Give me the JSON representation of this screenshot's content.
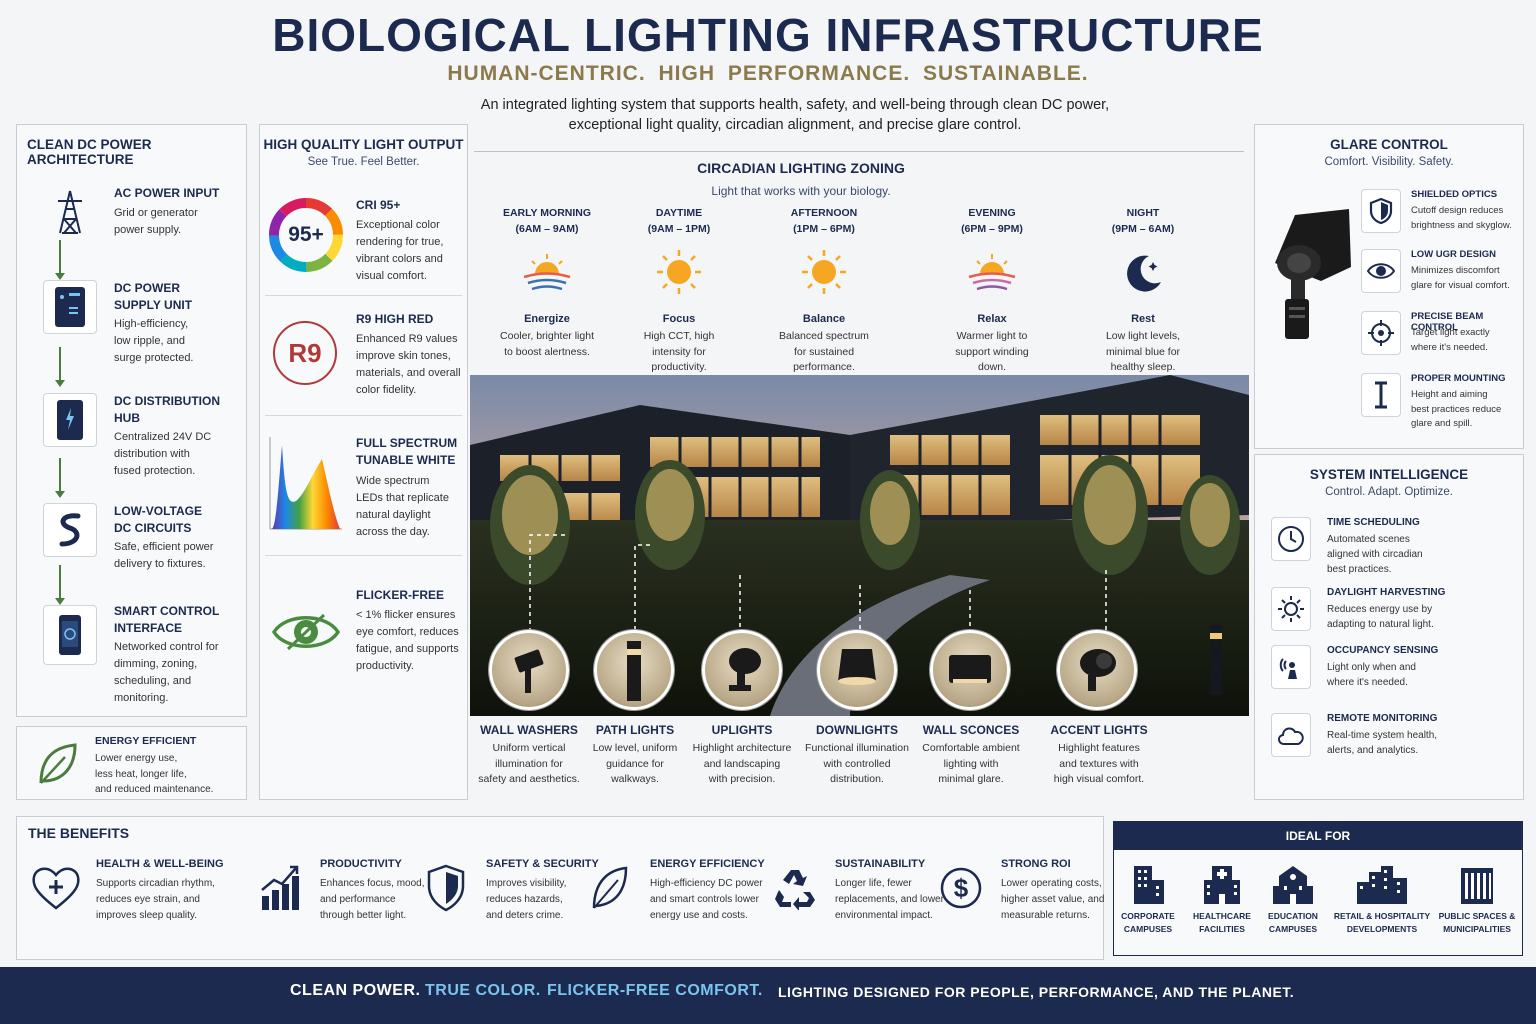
{
  "header": {
    "title": "BIOLOGICAL LIGHTING INFRASTRUCTURE",
    "subtitle": "HUMAN-CENTRIC.  HIGH PERFORMANCE.  SUSTAINABLE.",
    "intro_line1": "An integrated lighting system that supports health, safety, and well-being through clean DC power,",
    "intro_line2": "exceptional light quality, circadian alignment, and precise glare control."
  },
  "dc_power": {
    "title": "CLEAN DC POWER ARCHITECTURE",
    "steps": [
      {
        "h1": "AC POWER INPUT",
        "h2": "",
        "desc": [
          "Grid or generator",
          "power supply."
        ],
        "icon": "power-tower-icon"
      },
      {
        "h1": "DC POWER",
        "h2": "SUPPLY UNIT",
        "desc": [
          "High-efficiency,",
          "low ripple, and",
          "surge protected."
        ],
        "icon": "power-supply-icon"
      },
      {
        "h1": "DC DISTRIBUTION",
        "h2": "HUB",
        "desc": [
          "Centralized 24V DC",
          "distribution with",
          "fused protection."
        ],
        "icon": "distribution-hub-icon"
      },
      {
        "h1": "LOW-VOLTAGE",
        "h2": "DC CIRCUITS",
        "desc": [
          "Safe, efficient power",
          "delivery to fixtures."
        ],
        "icon": "circuit-cable-icon"
      },
      {
        "h1": "SMART CONTROL",
        "h2": "INTERFACE",
        "desc": [
          "Networked control for",
          "dimming, zoning,",
          "scheduling, and",
          "monitoring."
        ],
        "icon": "smart-control-icon"
      }
    ],
    "energy": {
      "title": "ENERGY EFFICIENT",
      "desc": [
        "Lower energy use,",
        "less heat, longer life,",
        "and reduced maintenance."
      ]
    }
  },
  "light_quality": {
    "title": "HIGH QUALITY LIGHT OUTPUT",
    "subtitle": "See True. Feel Better.",
    "cri_badge": "95+",
    "r9_badge": "R9",
    "items": [
      {
        "h": [
          "CRI 95+"
        ],
        "desc": [
          "Exceptional color",
          "rendering for true,",
          "vibrant colors and",
          "visual comfort."
        ]
      },
      {
        "h": [
          "R9 HIGH RED"
        ],
        "desc": [
          "Enhanced R9 values",
          "improve skin tones,",
          "materials, and overall",
          "color fidelity."
        ]
      },
      {
        "h": [
          "FULL SPECTRUM",
          "TUNABLE WHITE"
        ],
        "desc": [
          "Wide spectrum",
          "LEDs that replicate",
          "natural daylight",
          "across the day."
        ]
      },
      {
        "h": [
          "FLICKER-FREE"
        ],
        "desc": [
          "< 1% flicker ensures",
          "eye comfort, reduces",
          "fatigue, and supports",
          "productivity."
        ]
      }
    ]
  },
  "circadian": {
    "title": "CIRCADIAN LIGHTING ZONING",
    "subtitle": "Light that works with your biology.",
    "zones": [
      {
        "name": "EARLY MORNING",
        "time": "(6AM – 9AM)",
        "mood": "Energize",
        "desc": [
          "Cooler, brighter light",
          "to boost alertness."
        ],
        "icon": "sunrise-icon"
      },
      {
        "name": "DAYTIME",
        "time": "(9AM – 1PM)",
        "mood": "Focus",
        "desc": [
          "High CCT, high",
          "intensity for",
          "productivity."
        ],
        "icon": "sun-icon"
      },
      {
        "name": "AFTERNOON",
        "time": "(1PM – 6PM)",
        "mood": "Balance",
        "desc": [
          "Balanced spectrum",
          "for sustained",
          "performance."
        ],
        "icon": "sun-icon"
      },
      {
        "name": "EVENING",
        "time": "(6PM – 9PM)",
        "mood": "Relax",
        "desc": [
          "Warmer light to",
          "support winding",
          "down."
        ],
        "icon": "sunset-icon"
      },
      {
        "name": "NIGHT",
        "time": "(9PM – 6AM)",
        "mood": "Rest",
        "desc": [
          "Low light levels,",
          "minimal blue for",
          "healthy sleep."
        ],
        "icon": "moon-icon"
      }
    ]
  },
  "fixtures": [
    {
      "name": "WALL WASHERS",
      "desc": [
        "Uniform vertical",
        "illumination for",
        "safety and aesthetics."
      ]
    },
    {
      "name": "PATH LIGHTS",
      "desc": [
        "Low level, uniform",
        "guidance for",
        "walkways."
      ]
    },
    {
      "name": "UPLIGHTS",
      "desc": [
        "Highlight architecture",
        "and landscaping",
        "with precision."
      ]
    },
    {
      "name": "DOWNLIGHTS",
      "desc": [
        "Functional illumination",
        "with controlled",
        "distribution."
      ]
    },
    {
      "name": "WALL SCONCES",
      "desc": [
        "Comfortable ambient",
        "lighting with",
        "minimal glare."
      ]
    },
    {
      "name": "ACCENT LIGHTS",
      "desc": [
        "Highlight features",
        "and textures with",
        "high visual comfort."
      ]
    }
  ],
  "glare": {
    "title": "GLARE CONTROL",
    "subtitle": "Comfort. Visibility. Safety.",
    "items": [
      {
        "h": "SHIELDED OPTICS",
        "desc": [
          "Cutoff design reduces",
          "brightness and skyglow."
        ],
        "icon": "shield-icon"
      },
      {
        "h": "LOW UGR DESIGN",
        "desc": [
          "Minimizes discomfort",
          "glare for visual comfort."
        ],
        "icon": "eye-icon"
      },
      {
        "h": "PRECISE BEAM CONTROL",
        "desc": [
          "Target light exactly",
          "where it's needed."
        ],
        "icon": "crosshair-icon"
      },
      {
        "h": "PROPER MOUNTING",
        "desc": [
          "Height and aiming",
          "best practices reduce",
          "glare and spill."
        ],
        "icon": "mounting-icon"
      }
    ]
  },
  "intelligence": {
    "title": "SYSTEM INTELLIGENCE",
    "subtitle": "Control. Adapt. Optimize.",
    "items": [
      {
        "h": "TIME SCHEDULING",
        "desc": [
          "Automated scenes",
          "aligned with circadian",
          "best practices."
        ],
        "icon": "clock-icon"
      },
      {
        "h": "DAYLIGHT HARVESTING",
        "desc": [
          "Reduces energy use by",
          "adapting to natural light."
        ],
        "icon": "daylight-icon"
      },
      {
        "h": "OCCUPANCY SENSING",
        "desc": [
          "Light only when and",
          "where it's needed."
        ],
        "icon": "occupancy-icon"
      },
      {
        "h": "REMOTE MONITORING",
        "desc": [
          "Real-time system health,",
          "alerts, and analytics."
        ],
        "icon": "cloud-icon"
      }
    ]
  },
  "benefits": {
    "title": "THE BENEFITS",
    "items": [
      {
        "h": "HEALTH & WELL-BEING",
        "desc": [
          "Supports circadian rhythm,",
          "reduces eye strain, and",
          "improves sleep quality."
        ],
        "icon": "heart-icon"
      },
      {
        "h": "PRODUCTIVITY",
        "desc": [
          "Enhances focus, mood,",
          "and performance",
          "through better light."
        ],
        "icon": "growth-chart-icon"
      },
      {
        "h": "SAFETY & SECURITY",
        "desc": [
          "Improves visibility,",
          "reduces hazards,",
          "and deters crime."
        ],
        "icon": "shield-icon"
      },
      {
        "h": "ENERGY EFFICIENCY",
        "desc": [
          "High-efficiency DC power",
          "and smart controls lower",
          "energy use and costs."
        ],
        "icon": "leaf-icon"
      },
      {
        "h": "SUSTAINABILITY",
        "desc": [
          "Longer life, fewer",
          "replacements, and lower",
          "environmental impact."
        ],
        "icon": "recycle-icon"
      },
      {
        "h": "STRONG ROI",
        "desc": [
          "Lower operating costs,",
          "higher asset value, and",
          "measurable returns."
        ],
        "icon": "dollar-icon"
      }
    ]
  },
  "ideal_for": {
    "title": "IDEAL FOR",
    "items": [
      {
        "l1": "CORPORATE",
        "l2": "CAMPUSES"
      },
      {
        "l1": "HEALTHCARE",
        "l2": "FACILITIES"
      },
      {
        "l1": "EDUCATION",
        "l2": "CAMPUSES"
      },
      {
        "l1": "RETAIL & HOSPITALITY",
        "l2": "DEVELOPMENTS"
      },
      {
        "l1": "PUBLIC SPACES &",
        "l2": "MUNICIPALITIES"
      }
    ]
  },
  "footer": {
    "part1": "CLEAN POWER.",
    "part2": "TRUE COLOR.",
    "part3": "FLICKER-FREE COMFORT.",
    "part4": "LIGHTING DESIGNED FOR PEOPLE, PERFORMANCE, AND THE PLANET."
  },
  "colors": {
    "navy": "#1b2a4e",
    "gold": "#8a7a4c",
    "accent_blue": "#7cc4f0",
    "green": "#4a7c3f"
  }
}
